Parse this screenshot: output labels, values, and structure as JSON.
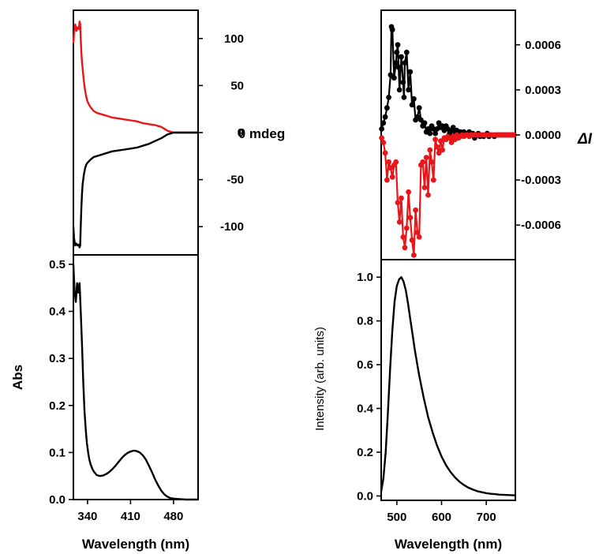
{
  "colors": {
    "series_a": "#000000",
    "series_b": "#e8161b",
    "axis": "#000000"
  },
  "chart_data": [
    {
      "id": "cd",
      "type": "line",
      "ylabel": "θ mdeg",
      "ylim": [
        -130,
        130
      ],
      "xlim": [
        317,
        520
      ],
      "yticks": [
        100,
        50,
        0,
        -50,
        -100
      ],
      "ytick_labels": [
        "100",
        "50",
        "0",
        "-50",
        "-100"
      ],
      "y_axis_side": "right",
      "series": [
        {
          "color": "#e8161b",
          "x": [
            317,
            318,
            320,
            322,
            324,
            326,
            327,
            328,
            329,
            330,
            331,
            332,
            334,
            336,
            338,
            340,
            343,
            346,
            350,
            355,
            360,
            365,
            370,
            380,
            390,
            400,
            410,
            420,
            430,
            440,
            450,
            460,
            465,
            470,
            475,
            480,
            490,
            500,
            510,
            520
          ],
          "y": [
            95,
            105,
            115,
            108,
            112,
            110,
            118,
            116,
            100,
            85,
            75,
            68,
            55,
            45,
            38,
            33,
            29,
            26,
            23,
            21,
            20,
            19,
            18,
            16,
            15,
            14,
            13,
            12,
            10,
            9,
            8,
            6,
            4,
            2,
            1,
            0,
            0,
            0,
            0,
            0
          ]
        },
        {
          "color": "#000000",
          "x": [
            317,
            318,
            320,
            322,
            324,
            326,
            327,
            328,
            329,
            330,
            331,
            332,
            334,
            336,
            338,
            340,
            343,
            346,
            350,
            355,
            360,
            365,
            370,
            380,
            390,
            400,
            410,
            420,
            430,
            440,
            450,
            460,
            465,
            470,
            475,
            480,
            490,
            500,
            510,
            520
          ],
          "y": [
            -100,
            -112,
            -120,
            -118,
            -120,
            -119,
            -122,
            -120,
            -100,
            -80,
            -65,
            -55,
            -45,
            -38,
            -34,
            -32,
            -30,
            -28,
            -26,
            -25,
            -24,
            -23,
            -22,
            -20,
            -19,
            -18,
            -17,
            -16,
            -14,
            -12,
            -9,
            -6,
            -4,
            -2,
            -1,
            0,
            0,
            0,
            0,
            0
          ]
        }
      ]
    },
    {
      "id": "abs",
      "type": "line",
      "ylabel": "Abs",
      "xlabel": "Wavelength (nm)",
      "xlim": [
        317,
        520
      ],
      "ylim": [
        0,
        0.52
      ],
      "xticks": [
        340,
        410,
        480
      ],
      "xtick_labels": [
        "340",
        "410",
        "480"
      ],
      "yticks": [
        0.0,
        0.1,
        0.2,
        0.3,
        0.4,
        0.5
      ],
      "ytick_labels": [
        "0.0",
        "0.1",
        "0.2",
        "0.3",
        "0.4",
        "0.5"
      ],
      "series": [
        {
          "color": "#000000",
          "x": [
            317,
            319,
            321,
            323,
            325,
            327,
            329,
            331,
            333,
            335,
            337,
            339,
            341,
            343,
            345,
            348,
            351,
            355,
            360,
            365,
            370,
            375,
            380,
            385,
            390,
            395,
            400,
            405,
            410,
            415,
            420,
            425,
            430,
            435,
            440,
            445,
            450,
            455,
            460,
            465,
            470,
            475,
            480,
            490,
            500,
            510,
            520
          ],
          "y": [
            0.5,
            0.44,
            0.42,
            0.46,
            0.44,
            0.46,
            0.4,
            0.33,
            0.25,
            0.19,
            0.15,
            0.12,
            0.1,
            0.085,
            0.075,
            0.065,
            0.058,
            0.052,
            0.05,
            0.051,
            0.054,
            0.058,
            0.064,
            0.071,
            0.079,
            0.087,
            0.094,
            0.099,
            0.102,
            0.104,
            0.103,
            0.1,
            0.094,
            0.085,
            0.072,
            0.058,
            0.043,
            0.03,
            0.019,
            0.011,
            0.006,
            0.003,
            0.002,
            0.001,
            0.0,
            0.0,
            0.0
          ]
        }
      ]
    },
    {
      "id": "cpl",
      "type": "line",
      "ylabel": "ΔI",
      "xlim": [
        465,
        765
      ],
      "ylim": [
        -0.00083,
        0.00083
      ],
      "yticks": [
        0.0006,
        0.0003,
        0.0,
        -0.0003,
        -0.0006
      ],
      "ytick_labels": [
        "0.0006",
        "0.0003",
        "0.0000",
        "-0.0003",
        "-0.0006"
      ],
      "y_axis_side": "right",
      "markers": true,
      "series": [
        {
          "color": "#000000",
          "x": [
            466,
            470,
            474,
            478,
            482,
            486,
            488,
            490,
            494,
            498,
            500,
            502,
            504,
            506,
            510,
            514,
            516,
            518,
            522,
            526,
            530,
            534,
            538,
            542,
            546,
            550,
            554,
            558,
            562,
            566,
            570,
            574,
            578,
            582,
            586,
            590,
            594,
            598,
            602,
            606,
            610,
            614,
            618,
            622,
            626,
            630,
            634,
            638,
            642,
            646,
            650,
            654,
            658,
            662,
            666,
            670,
            674,
            678,
            682,
            686,
            690,
            694,
            698,
            702,
            706,
            710,
            714,
            718,
            722,
            726,
            730,
            734,
            738,
            742,
            746,
            750,
            754,
            758,
            762
          ],
          "y": [
            4e-05,
            8e-05,
            0.00012,
            0.00018,
            0.00025,
            0.0004,
            0.00072,
            0.0007,
            0.00038,
            0.00048,
            0.00055,
            0.0006,
            0.00045,
            0.0003,
            0.00052,
            0.00035,
            0.00025,
            0.00048,
            0.00055,
            0.0003,
            0.00042,
            0.0002,
            0.00024,
            0.0001,
            0.00012,
            0.00018,
            0.0001,
            6e-05,
            8e-05,
            2e-05,
            4e-05,
            1e-05,
            6e-05,
            4e-05,
            1e-05,
            4e-05,
            8e-05,
            5e-05,
            6e-05,
            3e-05,
            6e-05,
            4e-05,
            1e-05,
            3e-05,
            5e-05,
            2e-05,
            3e-05,
            1e-05,
            2e-05,
            0.0,
            2e-05,
            1e-05,
            0.0,
            2e-05,
            0.0,
            1e-05,
            -2e-05,
            0.0,
            1e-05,
            -1e-05,
            0.0,
            -1e-05,
            0.0,
            1e-05,
            -1e-05,
            0.0,
            0.0,
            -1e-05,
            0.0,
            0.0,
            0.0,
            0.0,
            0.0,
            0.0,
            0.0,
            0.0,
            0.0,
            0.0,
            0.0
          ]
        },
        {
          "color": "#e8161b",
          "x": [
            466,
            470,
            474,
            478,
            482,
            486,
            490,
            494,
            498,
            502,
            506,
            510,
            514,
            518,
            522,
            526,
            530,
            534,
            538,
            542,
            546,
            550,
            554,
            558,
            562,
            566,
            570,
            574,
            578,
            582,
            586,
            590,
            594,
            598,
            602,
            606,
            610,
            614,
            618,
            622,
            626,
            630,
            634,
            638,
            642,
            646,
            650,
            654,
            658,
            662,
            666,
            670,
            674,
            678,
            682,
            686,
            690,
            694,
            698,
            702,
            706,
            710,
            714,
            718,
            722,
            726,
            730,
            734,
            738,
            742,
            746,
            750,
            754,
            758,
            762
          ],
          "y": [
            -2e-05,
            -5e-05,
            -0.00012,
            -0.0003,
            -0.00018,
            -0.00022,
            -0.00028,
            -0.0002,
            -0.00018,
            -0.00045,
            -0.00058,
            -0.00042,
            -0.00068,
            -0.00075,
            -0.00062,
            -0.00038,
            -0.00055,
            -0.0007,
            -0.0008,
            -0.0005,
            -0.00065,
            -0.00068,
            -0.0002,
            -0.00018,
            -0.00035,
            -0.00015,
            -0.0004,
            -0.0001,
            -0.00018,
            -0.0003,
            -3e-05,
            -8e-05,
            -0.00012,
            -4e-05,
            -0.0001,
            -2e-05,
            -3e-05,
            -1e-05,
            -2e-05,
            -5e-05,
            -1e-05,
            -3e-05,
            0.0,
            -2e-05,
            -1e-05,
            0.0,
            -1e-05,
            0.0,
            0.0,
            -1e-05,
            0.0,
            0.0,
            0.0,
            0.0,
            0.0,
            0.0,
            0.0,
            0.0,
            0.0,
            0.0,
            0.0,
            0.0,
            0.0,
            0.0,
            0.0,
            0.0,
            0.0,
            0.0,
            0.0,
            0.0,
            0.0,
            0.0,
            0.0,
            0.0,
            0.0
          ]
        }
      ]
    },
    {
      "id": "pl",
      "type": "line",
      "ylabel": "Intensity (arb. units)",
      "xlabel": "Wavelength (nm)",
      "xlim": [
        465,
        765
      ],
      "ylim": [
        -0.02,
        1.08
      ],
      "xticks": [
        500,
        600,
        700
      ],
      "xtick_labels": [
        "500",
        "600",
        "700"
      ],
      "yticks": [
        0.0,
        0.2,
        0.4,
        0.6,
        0.8,
        1.0
      ],
      "ytick_labels": [
        "0.0",
        "0.2",
        "0.4",
        "0.6",
        "0.8",
        "1.0"
      ],
      "series": [
        {
          "color": "#000000",
          "x": [
            465,
            470,
            475,
            480,
            485,
            490,
            495,
            500,
            505,
            510,
            515,
            520,
            525,
            530,
            535,
            540,
            545,
            550,
            560,
            570,
            580,
            590,
            600,
            610,
            620,
            630,
            640,
            650,
            660,
            670,
            680,
            690,
            700,
            710,
            720,
            730,
            740,
            750,
            760,
            765
          ],
          "y": [
            0.02,
            0.08,
            0.2,
            0.38,
            0.58,
            0.76,
            0.89,
            0.96,
            0.99,
            1.0,
            0.98,
            0.94,
            0.88,
            0.81,
            0.74,
            0.67,
            0.61,
            0.55,
            0.45,
            0.36,
            0.29,
            0.23,
            0.18,
            0.14,
            0.11,
            0.085,
            0.065,
            0.05,
            0.038,
            0.029,
            0.022,
            0.017,
            0.013,
            0.01,
            0.008,
            0.006,
            0.005,
            0.004,
            0.003,
            0.003
          ]
        }
      ]
    }
  ]
}
